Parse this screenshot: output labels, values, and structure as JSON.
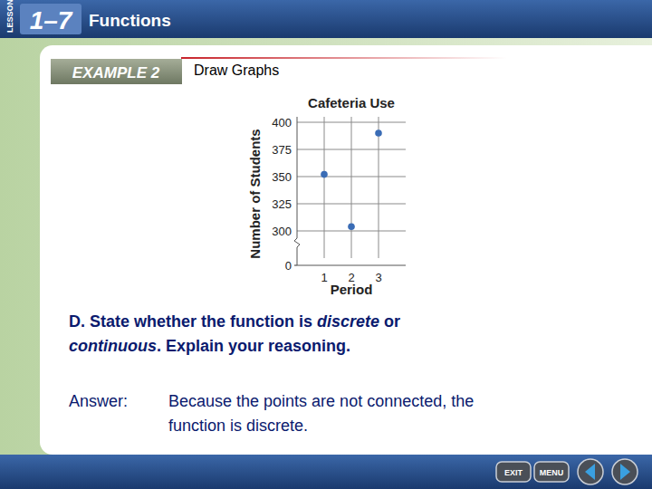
{
  "slide": {
    "lesson": "LESSON",
    "lesson_number": "1–7",
    "lesson_title": "Functions",
    "example": "EXAMPLE 2",
    "example_title": "Draw Graphs",
    "question": [
      [
        {
          "text": "D. State whether the function is "
        },
        {
          "text": "discrete",
          "style": "italic"
        },
        {
          "text": " or"
        }
      ],
      [
        {
          "text": "continuous",
          "style": "italic"
        },
        {
          "text": ". Explain your reasoning."
        }
      ]
    ],
    "answer_label": "Answer:",
    "answer": [
      "Because the points are not connected, the",
      "function is discrete."
    ],
    "buttons": [
      "EXIT",
      "MENU"
    ]
  },
  "chart_data": {
    "type": "scatter",
    "title": "Cafeteria Use",
    "x_label": "Period",
    "y_label": "Number of Students",
    "x": [
      1,
      2,
      3
    ],
    "values": [
      352,
      304,
      390
    ],
    "xlim": [
      0,
      4
    ],
    "xticks": [
      1,
      2,
      3
    ],
    "ylim": [
      0,
      400
    ],
    "yticks": [
      0,
      300,
      325,
      350,
      375,
      400
    ],
    "grid": true,
    "color": "#3a6cb5",
    "marker": "circle"
  }
}
